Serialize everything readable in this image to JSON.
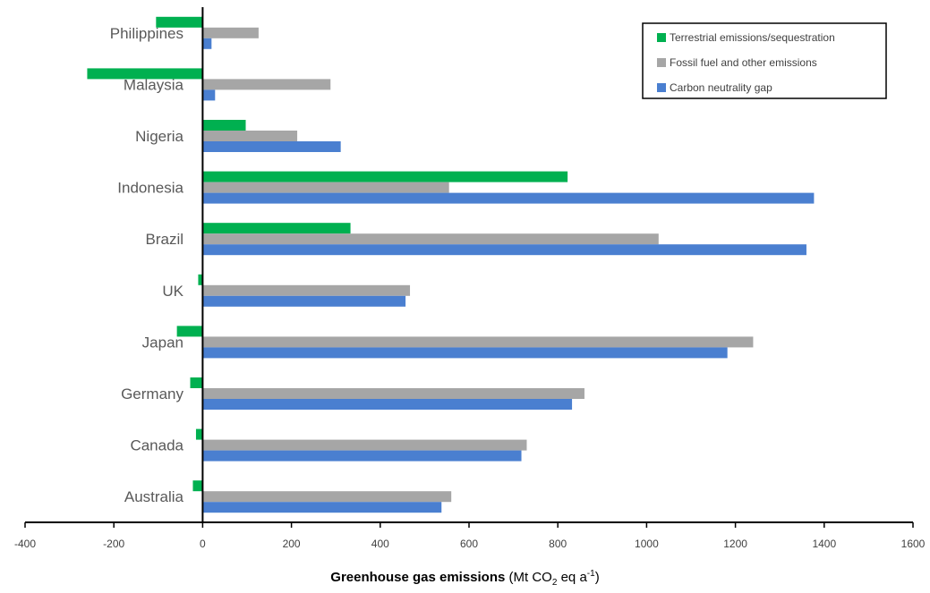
{
  "chart_data": {
    "type": "bar",
    "orientation": "horizontal",
    "categories": [
      "Philippines",
      "Malaysia",
      "Nigeria",
      "Indonesia",
      "Brazil",
      "UK",
      "Japan",
      "Germany",
      "Canada",
      "Australia"
    ],
    "series": [
      {
        "name": "Terrestrial emissions/sequestration",
        "color": "#00b050",
        "values": [
          -105,
          -260,
          97,
          822,
          333,
          -10,
          -58,
          -28,
          -15,
          -22
        ]
      },
      {
        "name": "Fossil fuel and other emissions",
        "color": "#a6a6a6",
        "values": [
          126,
          288,
          213,
          555,
          1027,
          467,
          1240,
          860,
          730,
          560
        ]
      },
      {
        "name": "Carbon neutrality gap",
        "color": "#4a7fd0",
        "values": [
          20,
          28,
          311,
          1377,
          1360,
          457,
          1182,
          832,
          718,
          538
        ]
      }
    ],
    "xlim": [
      -400,
      1600
    ],
    "xticks": [
      -400,
      -200,
      0,
      200,
      400,
      600,
      800,
      1000,
      1200,
      1400,
      1600
    ],
    "xticklabels": [
      "-400",
      "-200",
      "0",
      "200",
      "400",
      "600",
      "800",
      "1000",
      "1200",
      "1400",
      "1600"
    ],
    "xlabel_bold": "Greenhouse gas emissions",
    "xlabel_unit_prefix": " (Mt CO",
    "xlabel_unit_sub": "2",
    "xlabel_unit_mid": " eq a",
    "xlabel_unit_sup": "-1",
    "xlabel_unit_suffix": ")",
    "legend_position": "top-right",
    "grid": false
  }
}
